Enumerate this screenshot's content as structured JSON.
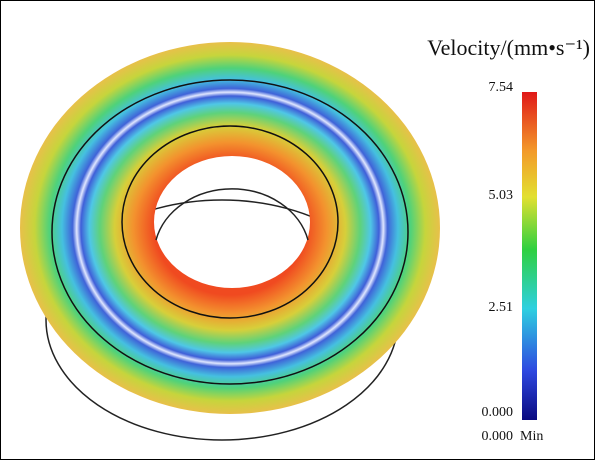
{
  "legend": {
    "title": "Velocity/(mm•s⁻¹)",
    "ticks": [
      "7.54",
      "5.03",
      "2.51",
      "0.000"
    ],
    "min_value": "0.000",
    "min_label": "Min"
  }
}
